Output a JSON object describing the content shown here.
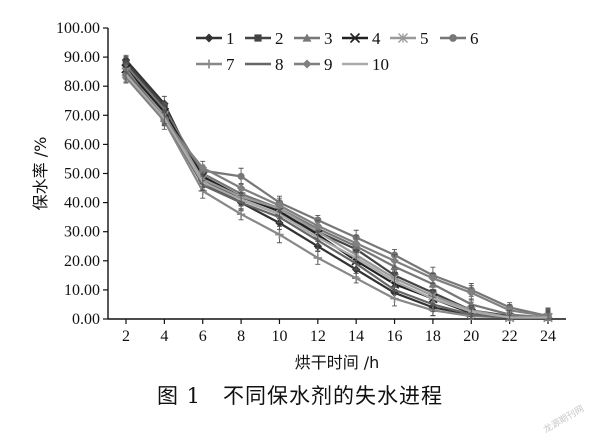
{
  "chart_data": {
    "type": "line",
    "xlabel": "烘干时间 /h",
    "ylabel": "保水率 /%",
    "x": [
      2,
      4,
      6,
      8,
      10,
      12,
      14,
      16,
      18,
      20,
      22,
      24
    ],
    "xlim": [
      2,
      24
    ],
    "ylim": [
      0,
      100
    ],
    "yticks": [
      "0.00",
      "10.00",
      "20.00",
      "30.00",
      "40.00",
      "50.00",
      "60.00",
      "70.00",
      "80.00",
      "90.00",
      "100.00"
    ],
    "xticks": [
      "2",
      "4",
      "6",
      "8",
      "10",
      "12",
      "14",
      "16",
      "18",
      "20",
      "22",
      "24"
    ],
    "legend_placement": "top",
    "error_bars": true,
    "series": [
      {
        "name": "1",
        "color": "#333333",
        "marker": "diamond",
        "values": [
          89.0,
          74.0,
          47.0,
          40.0,
          33.0,
          25.0,
          17.0,
          9.0,
          4.0,
          1.5,
          0.5,
          0.5
        ]
      },
      {
        "name": "2",
        "color": "#444444",
        "marker": "square",
        "values": [
          88.0,
          73.0,
          48.0,
          41.0,
          36.0,
          30.0,
          24.0,
          15.0,
          9.0,
          3.0,
          1.0,
          0.5
        ]
      },
      {
        "name": "3",
        "color": "#777777",
        "marker": "triangle",
        "values": [
          87.0,
          72.0,
          50.0,
          43.0,
          38.0,
          31.0,
          25.0,
          18.0,
          12.0,
          5.0,
          1.5,
          0.5
        ]
      },
      {
        "name": "4",
        "color": "#222222",
        "marker": "x",
        "values": [
          86.0,
          71.0,
          49.0,
          42.0,
          37.0,
          29.0,
          20.0,
          12.0,
          7.0,
          2.0,
          0.5,
          0.5
        ]
      },
      {
        "name": "5",
        "color": "#999999",
        "marker": "star",
        "values": [
          85.0,
          70.0,
          48.0,
          42.0,
          38.0,
          30.0,
          22.0,
          14.0,
          8.0,
          3.0,
          0.5,
          0.5
        ]
      },
      {
        "name": "6",
        "color": "#777777",
        "marker": "circle",
        "values": [
          84.0,
          69.0,
          51.0,
          49.0,
          40.0,
          34.0,
          28.0,
          22.0,
          15.0,
          10.0,
          4.0,
          1.0
        ]
      },
      {
        "name": "7",
        "color": "#888888",
        "marker": "plus",
        "values": [
          86.0,
          68.0,
          44.0,
          36.0,
          29.0,
          21.0,
          14.0,
          7.0,
          3.0,
          1.0,
          0.5,
          0.5
        ]
      },
      {
        "name": "8",
        "color": "#666666",
        "marker": "none",
        "values": [
          85.0,
          69.0,
          46.0,
          40.0,
          35.0,
          27.0,
          19.0,
          10.0,
          5.0,
          1.5,
          0.5,
          0.5
        ]
      },
      {
        "name": "9",
        "color": "#808080",
        "marker": "diamond",
        "values": [
          83.0,
          68.0,
          52.0,
          45.0,
          39.0,
          32.0,
          26.0,
          20.0,
          14.0,
          9.0,
          3.0,
          1.0
        ]
      },
      {
        "name": "10",
        "color": "#aaaaaa",
        "marker": "none",
        "values": [
          84.0,
          69.0,
          47.0,
          41.0,
          36.0,
          28.0,
          21.0,
          13.0,
          7.0,
          2.5,
          0.5,
          0.5
        ]
      }
    ]
  },
  "caption": "图 1　不同保水剂的失水进程",
  "watermark": "龙源期刊网"
}
